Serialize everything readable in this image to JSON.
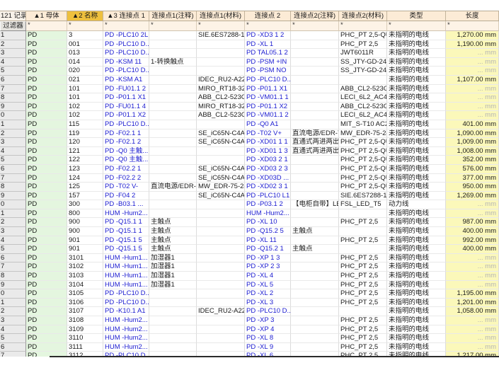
{
  "header": {
    "record_count_label": "121 记录",
    "filter_label": "过滤器",
    "filter_placeholder": "*",
    "columns": [
      {
        "id": "parent",
        "label": "▲1  母体",
        "highlighted": false
      },
      {
        "id": "name",
        "label": "▲2  名称",
        "highlighted": true
      },
      {
        "id": "cp1",
        "label": "▲3  连接点 1",
        "highlighted": false
      },
      {
        "id": "cp1_note",
        "label": "连接点1(注释)",
        "highlighted": false
      },
      {
        "id": "cp1_mat",
        "label": "连接点1(材料)",
        "highlighted": false
      },
      {
        "id": "cp2",
        "label": "连接点 2",
        "highlighted": false
      },
      {
        "id": "cp2_note",
        "label": "连接点2(注释)",
        "highlighted": false
      },
      {
        "id": "cp2_mat",
        "label": "连接点2(材料)",
        "highlighted": false
      },
      {
        "id": "type",
        "label": "类型",
        "highlighted": false
      },
      {
        "id": "length",
        "label": "长度",
        "highlighted": false
      }
    ]
  },
  "colors": {
    "header_bg": "#fcebd6",
    "sorted_header_bg": "#eec03e",
    "parent_col_bg": "#e4f6df",
    "length_col_bg": "#fbf8ba",
    "link_text": "#1b1bd0",
    "muted_text": "#b5b5b5"
  },
  "rows": [
    {
      "num": "1",
      "parent": "PD",
      "name": "3",
      "cp1": "PD -PLC10 2L",
      "cp1_note": "",
      "cp1_mat": "SIE.6ES7288-1S...",
      "cp2": "PD -XD3 1 2",
      "cp2_note": "",
      "cp2_mat": "PHC_PT 2,5-QU...",
      "type": "未指明的电线",
      "length": "1,270.00 mm"
    },
    {
      "num": "2",
      "parent": "PD",
      "name": "001",
      "cp1": "PD -PLC10 D...",
      "cp1_note": "",
      "cp1_mat": "",
      "cp2": "PD -XL 1",
      "cp2_note": "",
      "cp2_mat": "PHC_PT 2,5",
      "type": "未指明的电线",
      "length": "1,190.00 mm"
    },
    {
      "num": "3",
      "parent": "PD",
      "name": "013",
      "cp1": "PD -PLC10 D...",
      "cp1_note": "",
      "cp1_mat": "",
      "cp2": "PD TAL05.1 2",
      "cp2_note": "",
      "cp2_mat": "JWT6011R",
      "type": "未指明的电线",
      "length": "... mm"
    },
    {
      "num": "4",
      "parent": "PD",
      "name": "014",
      "cp1": "PD -KSM 11",
      "cp1_note": "1-转换触点",
      "cp1_mat": "",
      "cp2": "PD -PSM +IN",
      "cp2_note": "",
      "cp2_mat": "SS_JTY-GD-2412",
      "type": "未指明的电线",
      "length": "... mm"
    },
    {
      "num": "5",
      "parent": "PD",
      "name": "020",
      "cp1": "PD -PLC10 D...",
      "cp1_note": "",
      "cp1_mat": "",
      "cp2": "PD -PSM NO",
      "cp2_note": "",
      "cp2_mat": "SS_JTY-GD-2412",
      "type": "未指明的电线",
      "length": "... mm"
    },
    {
      "num": "6",
      "parent": "PD",
      "name": "021",
      "cp1": "PD -KSM A1",
      "cp1_note": "",
      "cp1_mat": "IDEC_RU2-A220",
      "cp2": "PD -PLC10 D...",
      "cp2_note": "",
      "cp2_mat": "",
      "type": "未指明的电线",
      "length": "1,107.00 mm"
    },
    {
      "num": "7",
      "parent": "PD",
      "name": "101",
      "cp1": "PD -FU01.1 2",
      "cp1_note": "",
      "cp1_mat": "MIRO_RT18-32/...",
      "cp2": "PD -P01.1 X1",
      "cp2_note": "",
      "cp2_mat": "ABB_CL2-523G",
      "type": "未指明的电线",
      "length": "... mm"
    },
    {
      "num": "8",
      "parent": "PD",
      "name": "101",
      "cp1": "PD -P01.1 X1",
      "cp1_note": "",
      "cp1_mat": "ABB_CL2-523G",
      "cp2": "PD -VM01.1 1",
      "cp2_note": "",
      "cp2_mat": "LECI_6L2_AC450V",
      "type": "未指明的电线",
      "length": "... mm"
    },
    {
      "num": "9",
      "parent": "PD",
      "name": "102",
      "cp1": "PD -FU01.1 4",
      "cp1_note": "",
      "cp1_mat": "MIRO_RT18-32/...",
      "cp2": "PD -P01.1 X2",
      "cp2_note": "",
      "cp2_mat": "ABB_CL2-523G",
      "type": "未指明的电线",
      "length": "... mm"
    },
    {
      "num": "0",
      "parent": "PD",
      "name": "102",
      "cp1": "PD -P01.1 X2",
      "cp1_note": "",
      "cp1_mat": "ABB_CL2-523G",
      "cp2": "PD -VM01.1 2",
      "cp2_note": "",
      "cp2_mat": "LECI_6L2_AC450V",
      "type": "未指明的电线",
      "length": "... mm"
    },
    {
      "num": "1",
      "parent": "PD",
      "name": "115",
      "cp1": "PD -PLC10 D...",
      "cp1_note": "",
      "cp1_mat": "",
      "cp2": "PD -Q0 A1",
      "cp2_note": "",
      "cp2_mat": "MIT_S-T10 AC2...",
      "type": "未指明的电线",
      "length": "401.00 mm"
    },
    {
      "num": "2",
      "parent": "PD",
      "name": "119",
      "cp1": "PD -F02.1 1",
      "cp1_note": "",
      "cp1_mat": "SE_iC65N-C4A/1P",
      "cp2": "PD -T02 V+",
      "cp2_note": "直流电源/EDR-7...",
      "cp2_mat": "MW_EDR-75-24",
      "type": "未指明的电线",
      "length": "1,090.00 mm"
    },
    {
      "num": "3",
      "parent": "PD",
      "name": "120",
      "cp1": "PD -F02.1 2",
      "cp1_note": "",
      "cp1_mat": "SE_iC65N-C4A/1P",
      "cp2": "PD -XD01 1 1",
      "cp2_note": "直通式两进两出...",
      "cp2_mat": "PHC_PT 2,5-QU...",
      "type": "未指明的电线",
      "length": "1,009.00 mm"
    },
    {
      "num": "4",
      "parent": "PD",
      "name": "121",
      "cp1": "PD -Q0 主触...",
      "cp1_note": "",
      "cp1_mat": "",
      "cp2": "PD -XD01 1 3",
      "cp2_note": "直通式两进两出...",
      "cp2_mat": "PHC_PT 2,5-QU...",
      "type": "未指明的电线",
      "length": "1,008.00 mm"
    },
    {
      "num": "5",
      "parent": "PD",
      "name": "122",
      "cp1": "PD -Q0 主触...",
      "cp1_note": "",
      "cp1_mat": "",
      "cp2": "PD -XD03 2 1",
      "cp2_note": "",
      "cp2_mat": "PHC_PT 2,5-QU...",
      "type": "未指明的电线",
      "length": "352.00 mm"
    },
    {
      "num": "6",
      "parent": "PD",
      "name": "123",
      "cp1": "PD -F02.2 1",
      "cp1_note": "",
      "cp1_mat": "SE_iC65N-C4A/1P",
      "cp2": "PD -XD03 2 3",
      "cp2_note": "",
      "cp2_mat": "PHC_PT 2,5-QU...",
      "type": "未指明的电线",
      "length": "576.00 mm"
    },
    {
      "num": "7",
      "parent": "PD",
      "name": "124",
      "cp1": "PD -F02.2 2",
      "cp1_note": "",
      "cp1_mat": "SE_iC65N-C4A/1P",
      "cp2": "PD -XD03D ...",
      "cp2_note": "",
      "cp2_mat": "PHC_PT 2,5-QU...",
      "type": "未指明的电线",
      "length": "377.00 mm"
    },
    {
      "num": "8",
      "parent": "PD",
      "name": "125",
      "cp1": "PD -T02 V-",
      "cp1_note": "直流电源/EDR-7...",
      "cp1_mat": "MW_EDR-75-24",
      "cp2": "PD -XD02 3 1",
      "cp2_note": "",
      "cp2_mat": "PHC_PT 2,5-QU...",
      "type": "未指明的电线",
      "length": "950.00 mm"
    },
    {
      "num": "9",
      "parent": "PD",
      "name": "157",
      "cp1": "PD -F04 2",
      "cp1_note": "",
      "cp1_mat": "SE_iC65N-C4A/1P",
      "cp2": "PD -PLC10 L1",
      "cp2_note": "",
      "cp2_mat": "SIE.6ES7288-1S...",
      "type": "未指明的电线",
      "length": "1,269.00 mm"
    },
    {
      "num": "0",
      "parent": "PD",
      "name": "300",
      "cp1": "PD -B03.1 ...",
      "cp1_note": "",
      "cp1_mat": "",
      "cp2": "PD -P03.1 2",
      "cp2_note": "【电柜自带】LE...",
      "cp2_mat": "FSL_LED_T5",
      "type": "动力线",
      "length": "... mm"
    },
    {
      "num": "1",
      "parent": "PD",
      "name": "800",
      "cp1": "HUM -Hum2...",
      "cp1_note": "",
      "cp1_mat": "",
      "cp2": "HUM -Hum2...",
      "cp2_note": "",
      "cp2_mat": "",
      "type": "未指明的电线",
      "length": "... mm"
    },
    {
      "num": "2",
      "parent": "PD",
      "name": "900",
      "cp1": "PD -Q15.1 1",
      "cp1_note": "主触点",
      "cp1_mat": "",
      "cp2": "PD -XL 10",
      "cp2_note": "",
      "cp2_mat": "PHC_PT 2,5",
      "type": "未指明的电线",
      "length": "987.00 mm"
    },
    {
      "num": "3",
      "parent": "PD",
      "name": "900",
      "cp1": "PD -Q15.1 1",
      "cp1_note": "主触点",
      "cp1_mat": "",
      "cp2": "PD -Q15.2 5",
      "cp2_note": "主触点",
      "cp2_mat": "",
      "type": "未指明的电线",
      "length": "400.00 mm"
    },
    {
      "num": "4",
      "parent": "PD",
      "name": "901",
      "cp1": "PD -Q15.1 5",
      "cp1_note": "主触点",
      "cp1_mat": "",
      "cp2": "PD -XL 11",
      "cp2_note": "",
      "cp2_mat": "PHC_PT 2,5",
      "type": "未指明的电线",
      "length": "992.00 mm"
    },
    {
      "num": "5",
      "parent": "PD",
      "name": "901",
      "cp1": "PD -Q15.1 5",
      "cp1_note": "主触点",
      "cp1_mat": "",
      "cp2": "PD -Q15.2 1",
      "cp2_note": "主触点",
      "cp2_mat": "",
      "type": "未指明的电线",
      "length": "400.00 mm"
    },
    {
      "num": "6",
      "parent": "PD",
      "name": "3101",
      "cp1": "HUM -Hum1...",
      "cp1_note": "加湿器1",
      "cp1_mat": "",
      "cp2": "PD -XP 1 3",
      "cp2_note": "",
      "cp2_mat": "PHC_PT 2,5",
      "type": "未指明的电线",
      "length": "... mm"
    },
    {
      "num": "7",
      "parent": "PD",
      "name": "3102",
      "cp1": "HUM -Hum1...",
      "cp1_note": "加湿器1",
      "cp1_mat": "",
      "cp2": "PD -XP 2 3",
      "cp2_note": "",
      "cp2_mat": "PHC_PT 2,5",
      "type": "未指明的电线",
      "length": "... mm"
    },
    {
      "num": "8",
      "parent": "PD",
      "name": "3103",
      "cp1": "HUM -Hum1...",
      "cp1_note": "加湿器1",
      "cp1_mat": "",
      "cp2": "PD -XL 4",
      "cp2_note": "",
      "cp2_mat": "PHC_PT 2,5",
      "type": "未指明的电线",
      "length": "... mm"
    },
    {
      "num": "9",
      "parent": "PD",
      "name": "3104",
      "cp1": "HUM -Hum1...",
      "cp1_note": "加湿器1",
      "cp1_mat": "",
      "cp2": "PD -XL 5",
      "cp2_note": "",
      "cp2_mat": "PHC_PT 2,5",
      "type": "未指明的电线",
      "length": "... mm"
    },
    {
      "num": "0",
      "parent": "PD",
      "name": "3105",
      "cp1": "PD -PLC10 D...",
      "cp1_note": "",
      "cp1_mat": "",
      "cp2": "PD -XL 2",
      "cp2_note": "",
      "cp2_mat": "PHC_PT 2,5",
      "type": "未指明的电线",
      "length": "1,195.00 mm"
    },
    {
      "num": "1",
      "parent": "PD",
      "name": "3106",
      "cp1": "PD -PLC10 D...",
      "cp1_note": "",
      "cp1_mat": "",
      "cp2": "PD -XL 3",
      "cp2_note": "",
      "cp2_mat": "PHC_PT 2,5",
      "type": "未指明的电线",
      "length": "1,201.00 mm"
    },
    {
      "num": "2",
      "parent": "PD",
      "name": "3107",
      "cp1": "PD -K10.1 A1",
      "cp1_note": "",
      "cp1_mat": "IDEC_RU2-A220",
      "cp2": "PD -PLC10 D...",
      "cp2_note": "",
      "cp2_mat": "",
      "type": "未指明的电线",
      "length": "1,058.00 mm"
    },
    {
      "num": "3",
      "parent": "PD",
      "name": "3108",
      "cp1": "HUM -Hum2...",
      "cp1_note": "",
      "cp1_mat": "",
      "cp2": "PD -XP 3",
      "cp2_note": "",
      "cp2_mat": "PHC_PT 2,5",
      "type": "未指明的电线",
      "length": "... mm"
    },
    {
      "num": "4",
      "parent": "PD",
      "name": "3109",
      "cp1": "HUM -Hum2...",
      "cp1_note": "",
      "cp1_mat": "",
      "cp2": "PD -XP 4",
      "cp2_note": "",
      "cp2_mat": "PHC_PT 2,5",
      "type": "未指明的电线",
      "length": "... mm"
    },
    {
      "num": "5",
      "parent": "PD",
      "name": "3110",
      "cp1": "HUM -Hum2...",
      "cp1_note": "",
      "cp1_mat": "",
      "cp2": "PD -XL 8",
      "cp2_note": "",
      "cp2_mat": "PHC_PT 2,5",
      "type": "未指明的电线",
      "length": "... mm"
    },
    {
      "num": "6",
      "parent": "PD",
      "name": "3111",
      "cp1": "HUM -Hum2...",
      "cp1_note": "",
      "cp1_mat": "",
      "cp2": "PD -XL 9",
      "cp2_note": "",
      "cp2_mat": "PHC_PT 2,5",
      "type": "未指明的电线",
      "length": "... mm"
    },
    {
      "num": "7",
      "parent": "PD",
      "name": "3112",
      "cp1": "PD -PLC10 D...",
      "cp1_note": "",
      "cp1_mat": "",
      "cp2": "PD -XL 6",
      "cp2_note": "",
      "cp2_mat": "PHC_PT 2,5",
      "type": "未指明的电线",
      "length": "1,217.00 mm"
    }
  ]
}
